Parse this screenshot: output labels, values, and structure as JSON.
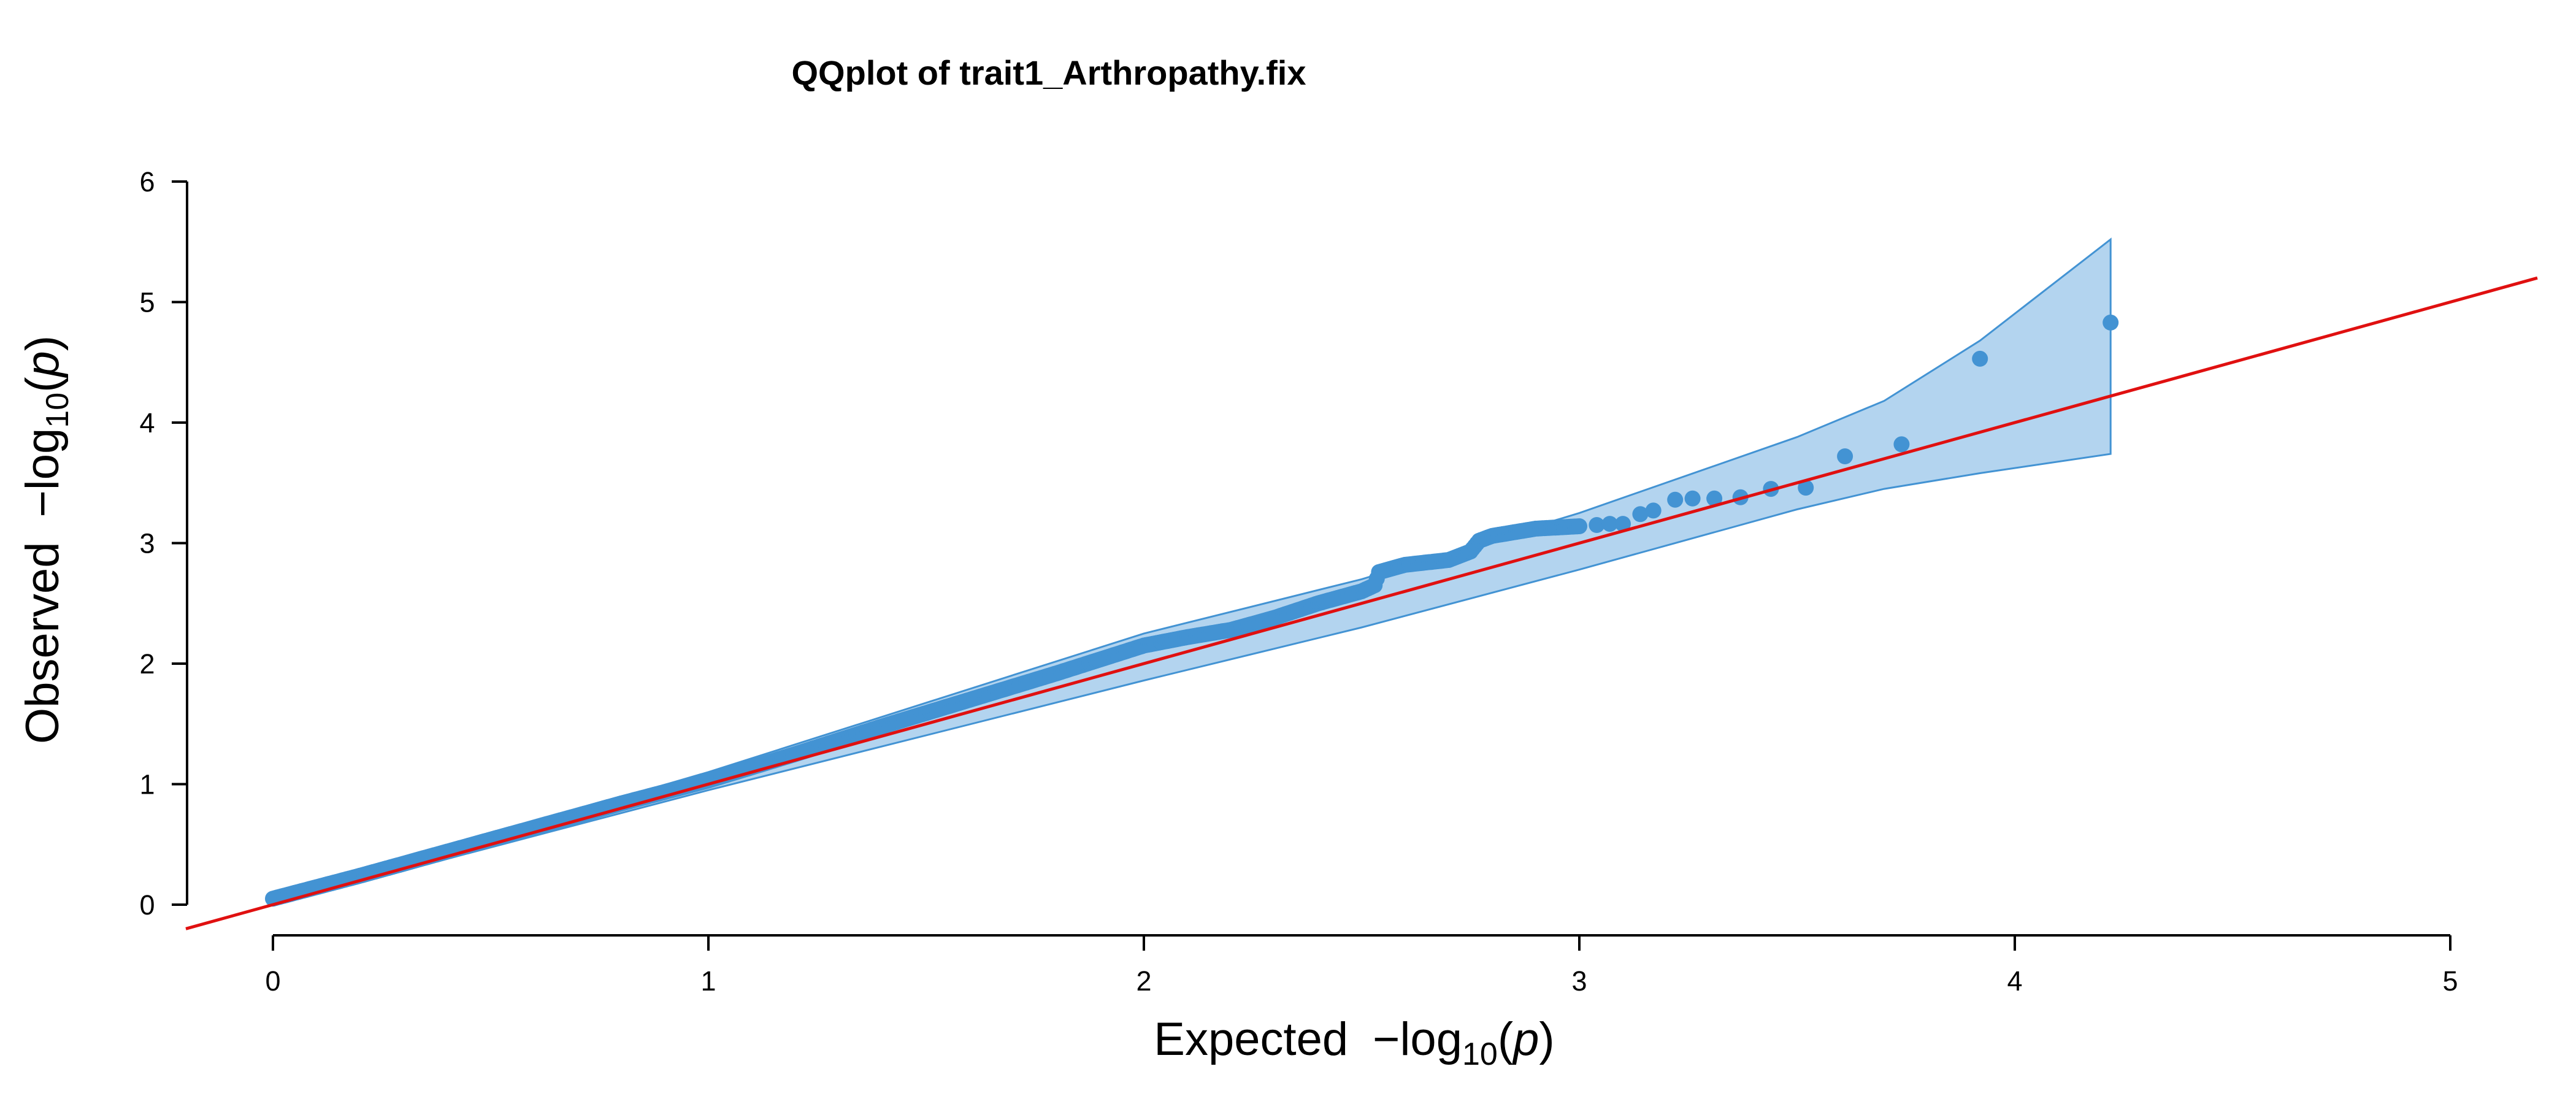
{
  "chart_data": {
    "type": "scatter",
    "title": "QQplot of trait1_Arthropathy.fix",
    "xlabel": {
      "prefix": "Expected",
      "minus": "−",
      "log": "log",
      "sub": "10",
      "open": "(",
      "var": "p",
      "close": ")"
    },
    "ylabel": {
      "prefix": "Observed",
      "minus": "−",
      "log": "log",
      "sub": "10",
      "open": "(",
      "var": "p",
      "close": ")"
    },
    "xlim": [
      0,
      5
    ],
    "ylim": [
      0,
      6
    ],
    "x_ticks": [
      "0",
      "1",
      "2",
      "3",
      "4",
      "5"
    ],
    "y_ticks": [
      "0",
      "1",
      "2",
      "3",
      "4",
      "5",
      "6"
    ],
    "grid": false,
    "colors": {
      "points": "#4393d3",
      "band_fill": "#b3d4ef",
      "band_stroke": "#4393d3",
      "reference_line": "#e01010"
    },
    "reference_line": {
      "slope": 1,
      "intercept": 0
    },
    "confidence_band": {
      "x": [
        0,
        1,
        2,
        2.5,
        3,
        3.5,
        3.7,
        3.92,
        4.22
      ],
      "upper": [
        0.05,
        1.1,
        2.25,
        2.7,
        3.25,
        3.88,
        4.18,
        4.68,
        5.52
      ],
      "lower": [
        0.0,
        0.95,
        1.86,
        2.3,
        2.78,
        3.28,
        3.45,
        3.58,
        3.74
      ]
    },
    "dense_curve": {
      "x": [
        0,
        0.2,
        0.4,
        0.6,
        0.8,
        1.0,
        1.2,
        1.4,
        1.6,
        1.8,
        2.0,
        2.1,
        2.2,
        2.3,
        2.4,
        2.5,
        2.53,
        2.54,
        2.6,
        2.7,
        2.75,
        2.77,
        2.8,
        2.9,
        3.0
      ],
      "y": [
        0.05,
        0.24,
        0.44,
        0.64,
        0.84,
        1.03,
        1.25,
        1.48,
        1.7,
        1.92,
        2.15,
        2.22,
        2.28,
        2.38,
        2.5,
        2.6,
        2.65,
        2.76,
        2.82,
        2.86,
        2.93,
        3.02,
        3.06,
        3.12,
        3.14
      ]
    },
    "points": [
      {
        "x": 3.04,
        "y": 3.15
      },
      {
        "x": 3.07,
        "y": 3.16
      },
      {
        "x": 3.1,
        "y": 3.16
      },
      {
        "x": 3.14,
        "y": 3.24
      },
      {
        "x": 3.17,
        "y": 3.27
      },
      {
        "x": 3.22,
        "y": 3.36
      },
      {
        "x": 3.26,
        "y": 3.37
      },
      {
        "x": 3.31,
        "y": 3.37
      },
      {
        "x": 3.37,
        "y": 3.38
      },
      {
        "x": 3.44,
        "y": 3.45
      },
      {
        "x": 3.52,
        "y": 3.46
      },
      {
        "x": 3.61,
        "y": 3.72
      },
      {
        "x": 3.74,
        "y": 3.82
      },
      {
        "x": 3.92,
        "y": 4.53
      },
      {
        "x": 4.22,
        "y": 4.83
      }
    ]
  }
}
